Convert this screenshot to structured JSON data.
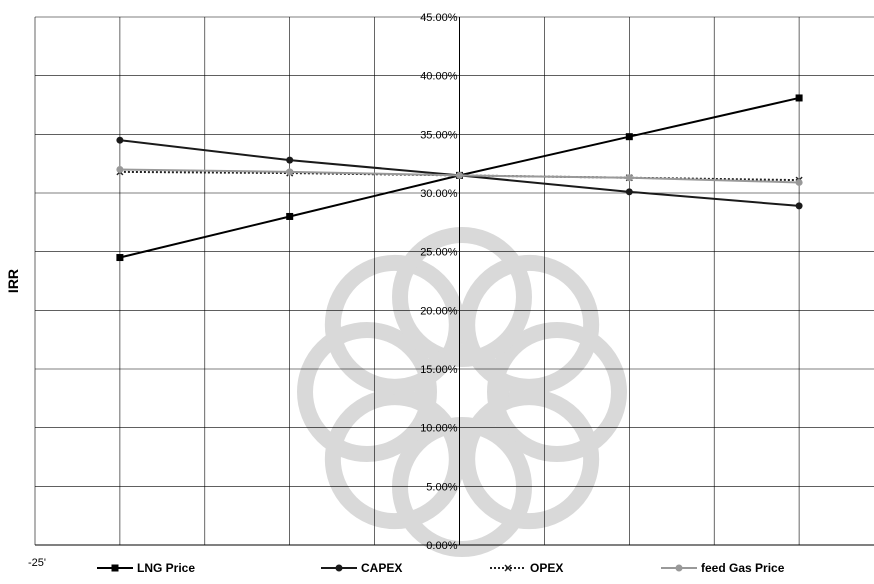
{
  "chart_data": {
    "type": "line",
    "title": "",
    "xlabel": "",
    "ylabel": "IRR",
    "x_tick_labels": [
      "-25'"
    ],
    "x": [
      -25,
      -12.5,
      0,
      12.5,
      25
    ],
    "xlim": [
      -31.25,
      31.25
    ],
    "ylim": [
      0,
      0.45
    ],
    "y_ticks": [
      0,
      0.05,
      0.1,
      0.15,
      0.2,
      0.25,
      0.3,
      0.35,
      0.4,
      0.45
    ],
    "y_tick_labels": [
      "0.00%",
      "5.00%",
      "10.00%",
      "15.00%",
      "20.00%",
      "25.00%",
      "30.00%",
      "35.00%",
      "40.00%",
      "45.00%"
    ],
    "grid": true,
    "legend_position": "bottom",
    "series": [
      {
        "name": "LNG Price",
        "values": [
          0.245,
          0.28,
          0.315,
          0.348,
          0.381
        ],
        "color": "#000000",
        "marker": "square",
        "dash": ""
      },
      {
        "name": "CAPEX",
        "values": [
          0.345,
          0.328,
          0.315,
          0.301,
          0.289
        ],
        "color": "#1a1a1a",
        "marker": "circle",
        "dash": ""
      },
      {
        "name": "OPEX",
        "values": [
          0.318,
          0.317,
          0.315,
          0.313,
          0.311
        ],
        "color": "#222222",
        "marker": "x",
        "dash": "2,2"
      },
      {
        "name": "feed Gas Price",
        "values": [
          0.32,
          0.318,
          0.315,
          0.313,
          0.309
        ],
        "color": "#999999",
        "marker": "circle",
        "dash": ""
      }
    ]
  },
  "watermark": {
    "name": "watermark-emblem"
  }
}
